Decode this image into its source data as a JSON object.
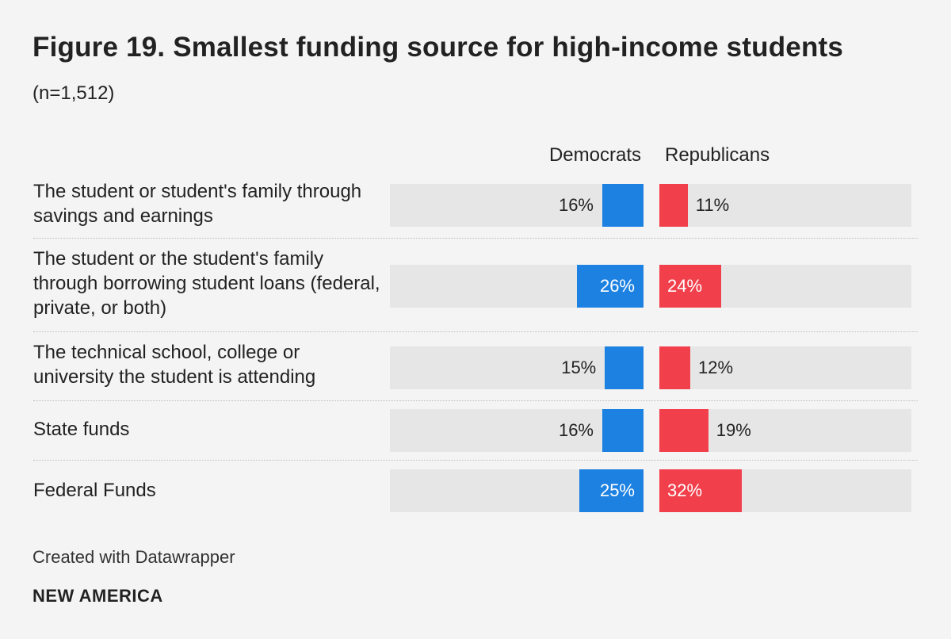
{
  "title": "Figure 19. Smallest funding source for high-income students",
  "subtitle": "(n=1,512)",
  "footer": {
    "credit": "Created with Datawrapper",
    "brand": "NEW AMERICA"
  },
  "colors": {
    "democrats": "#1d81e2",
    "republicans": "#f1404b",
    "track": "#e6e6e6",
    "background": "#f4f4f4"
  },
  "chart_data": {
    "type": "bar",
    "orientation": "horizontal",
    "title": "Figure 19. Smallest funding source for high-income students",
    "subtitle": "(n=1,512)",
    "unit": "%",
    "xlim": [
      0,
      100
    ],
    "categories": [
      "The student or student's family through savings and earnings",
      "The student or the student's family through borrowing student loans (federal, private, or both)",
      "The technical school, college or university the student is attending",
      "State funds",
      "Federal Funds"
    ],
    "series": [
      {
        "name": "Democrats",
        "values": [
          16,
          26,
          15,
          16,
          25
        ]
      },
      {
        "name": "Republicans",
        "values": [
          11,
          24,
          12,
          19,
          32
        ]
      }
    ],
    "labels": {
      "Democrats": [
        "16%",
        "26%",
        "15%",
        "16%",
        "25%"
      ],
      "Republicans": [
        "11%",
        "24%",
        "12%",
        "19%",
        "32%"
      ]
    }
  }
}
